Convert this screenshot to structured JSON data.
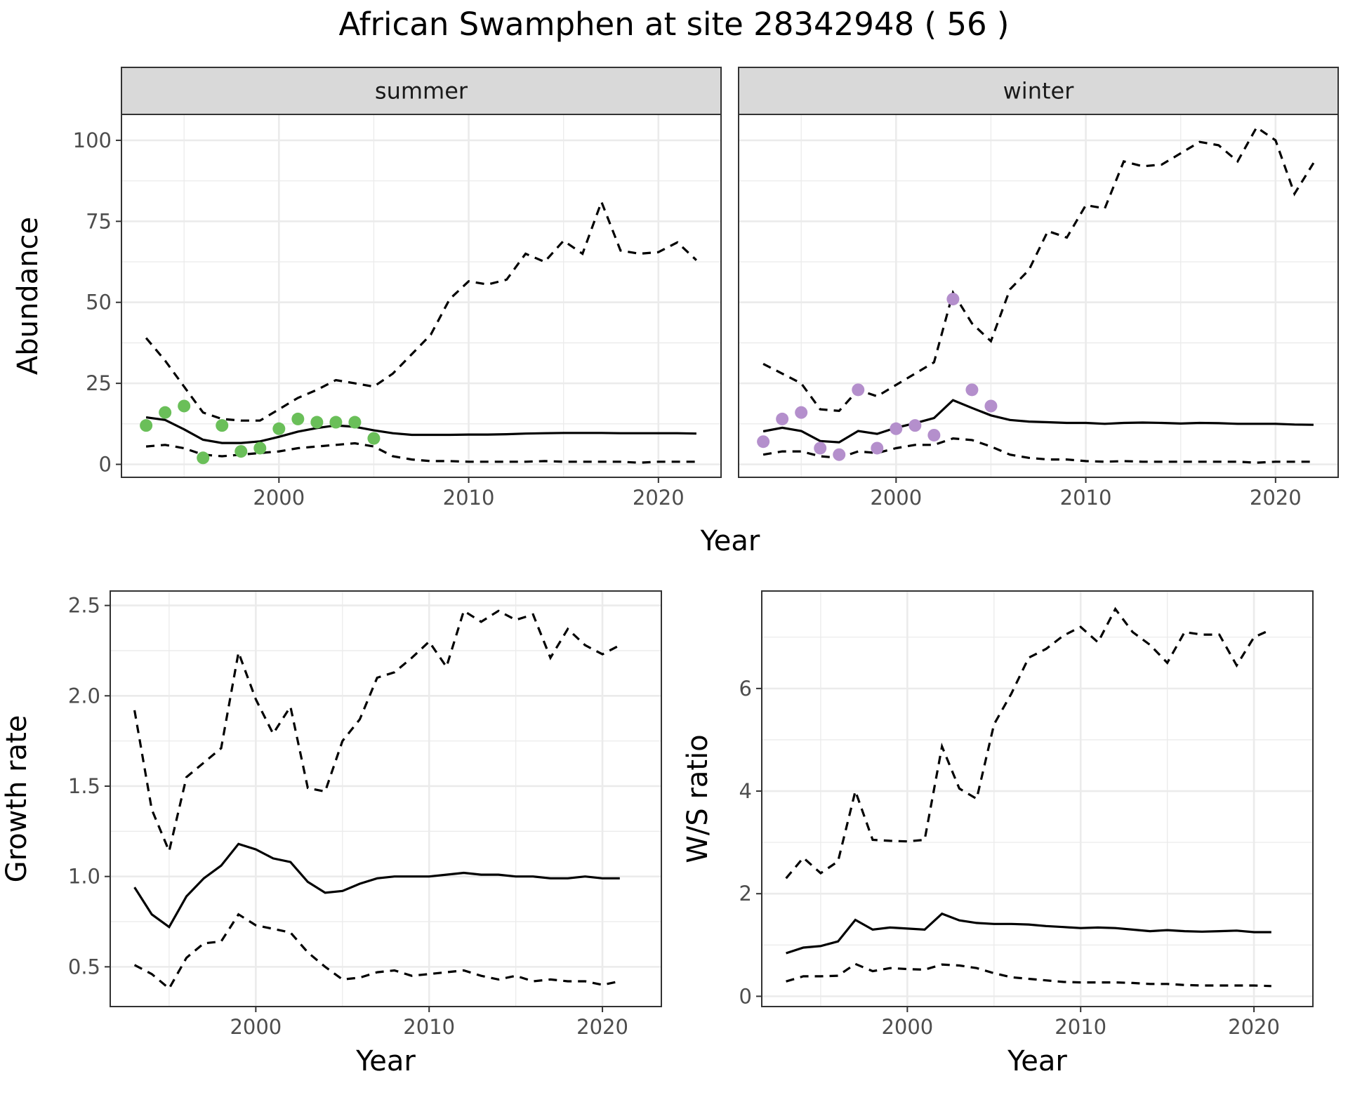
{
  "title": "African Swamphen at site 28342948 ( 56 )",
  "colors": {
    "summer_points": "#6abf59",
    "winter_points": "#b48fcc",
    "strip_fill": "#d9d9d9",
    "lines": "#000000"
  },
  "chart_data": [
    {
      "id": "abundance-summer",
      "type": "line",
      "strip_label": "summer",
      "xlabel": "",
      "ylabel": "Abundance",
      "xlim": [
        1991.7,
        2023.3
      ],
      "ylim": [
        -4,
        108
      ],
      "x_ticks": [
        2000,
        2010,
        2020
      ],
      "y_ticks": [
        0,
        25,
        50,
        75,
        100
      ],
      "grid": true,
      "series": [
        {
          "role": "mean",
          "style": "solid",
          "x": [
            1993,
            1994,
            1995,
            1996,
            1997,
            1998,
            1999,
            2000,
            2001,
            2002,
            2003,
            2004,
            2005,
            2006,
            2007,
            2008,
            2009,
            2010,
            2011,
            2012,
            2013,
            2014,
            2015,
            2016,
            2017,
            2018,
            2019,
            2020,
            2021,
            2022
          ],
          "y": [
            14.5,
            13.7,
            10.8,
            7.6,
            6.6,
            6.6,
            7.1,
            8.5,
            10.1,
            11.2,
            12.0,
            11.6,
            10.5,
            9.6,
            9.1,
            9.1,
            9.1,
            9.2,
            9.2,
            9.3,
            9.5,
            9.6,
            9.7,
            9.7,
            9.7,
            9.6,
            9.6,
            9.6,
            9.6,
            9.5
          ]
        },
        {
          "role": "upper",
          "style": "dashed",
          "x": [
            1993,
            1994,
            1995,
            1996,
            1997,
            1998,
            1999,
            2000,
            2001,
            2002,
            2003,
            2004,
            2005,
            2006,
            2007,
            2008,
            2009,
            2010,
            2011,
            2012,
            2013,
            2014,
            2015,
            2016,
            2017,
            2018,
            2019,
            2020,
            2021,
            2022
          ],
          "y": [
            39,
            32,
            24,
            16,
            14,
            13.5,
            13.5,
            17,
            20.5,
            23,
            26,
            25,
            24,
            28,
            34,
            40,
            51,
            56.5,
            55.5,
            57,
            65,
            62.5,
            69,
            65,
            81,
            66,
            65,
            65.5,
            68.5,
            63
          ]
        },
        {
          "role": "lower",
          "style": "dashed",
          "x": [
            1993,
            1994,
            1995,
            1996,
            1997,
            1998,
            1999,
            2000,
            2001,
            2002,
            2003,
            2004,
            2005,
            2006,
            2007,
            2008,
            2009,
            2010,
            2011,
            2012,
            2013,
            2014,
            2015,
            2016,
            2017,
            2018,
            2019,
            2020,
            2021,
            2022
          ],
          "y": [
            5.5,
            6,
            5,
            3,
            2.5,
            3,
            3.5,
            4,
            5,
            5.5,
            6,
            6.5,
            5.5,
            2.5,
            1.5,
            1,
            1,
            0.8,
            0.8,
            0.8,
            0.8,
            1,
            0.8,
            0.8,
            0.8,
            0.8,
            0.5,
            0.8,
            0.8,
            0.8
          ]
        }
      ],
      "points": {
        "x": [
          1993,
          1994,
          1995,
          1996,
          1997,
          1998,
          1999,
          2000,
          2001,
          2002,
          2003,
          2004,
          2005
        ],
        "y": [
          12,
          16,
          18,
          2,
          12,
          4,
          5,
          11,
          14,
          13,
          13,
          13,
          8
        ]
      }
    },
    {
      "id": "abundance-winter",
      "type": "line",
      "strip_label": "winter",
      "xlabel": "",
      "ylabel": "",
      "xlim": [
        1991.7,
        2023.3
      ],
      "ylim": [
        -4,
        108
      ],
      "x_ticks": [
        2000,
        2010,
        2020
      ],
      "y_ticks": [
        0,
        25,
        50,
        75,
        100
      ],
      "grid": true,
      "series": [
        {
          "role": "mean",
          "style": "solid",
          "x": [
            1993,
            1994,
            1995,
            1996,
            1997,
            1998,
            1999,
            2000,
            2001,
            2002,
            2003,
            2004,
            2005,
            2006,
            2007,
            2008,
            2009,
            2010,
            2011,
            2012,
            2013,
            2014,
            2015,
            2016,
            2017,
            2018,
            2019,
            2020,
            2021,
            2022
          ],
          "y": [
            10.2,
            11.3,
            10.3,
            7.2,
            6.8,
            10.3,
            9.4,
            11.3,
            12.7,
            14.3,
            19.8,
            17.4,
            15.1,
            13.7,
            13.2,
            13,
            12.8,
            12.8,
            12.5,
            12.8,
            12.9,
            12.8,
            12.6,
            12.8,
            12.7,
            12.5,
            12.5,
            12.5,
            12.3,
            12.2
          ]
        },
        {
          "role": "upper",
          "style": "dashed",
          "x": [
            1993,
            1994,
            1995,
            1996,
            1997,
            1998,
            1999,
            2000,
            2001,
            2002,
            2003,
            2004,
            2005,
            2006,
            2007,
            2008,
            2009,
            2010,
            2011,
            2012,
            2013,
            2014,
            2015,
            2016,
            2017,
            2018,
            2019,
            2020,
            2021,
            2022
          ],
          "y": [
            31,
            28,
            25,
            17,
            16.5,
            23,
            21,
            24.5,
            28,
            31.5,
            53,
            43.5,
            38,
            54,
            60,
            72,
            70,
            80,
            79,
            93.5,
            92,
            92.5,
            96,
            99.5,
            98.5,
            93.5,
            104,
            100,
            83.5,
            93
          ]
        },
        {
          "role": "lower",
          "style": "dashed",
          "x": [
            1993,
            1994,
            1995,
            1996,
            1997,
            1998,
            1999,
            2000,
            2001,
            2002,
            2003,
            2004,
            2005,
            2006,
            2007,
            2008,
            2009,
            2010,
            2011,
            2012,
            2013,
            2014,
            2015,
            2016,
            2017,
            2018,
            2019,
            2020,
            2021,
            2022
          ],
          "y": [
            3,
            4,
            4,
            2.5,
            2,
            4,
            3.5,
            5,
            6,
            6,
            8,
            7.5,
            5.5,
            3,
            2,
            1.5,
            1.5,
            1,
            0.8,
            1,
            0.8,
            0.8,
            0.8,
            0.8,
            0.8,
            0.8,
            0.5,
            0.8,
            0.8,
            0.8
          ]
        }
      ],
      "points": {
        "x": [
          1993,
          1994,
          1995,
          1996,
          1997,
          1998,
          1999,
          2000,
          2001,
          2002,
          2003,
          2004,
          2005
        ],
        "y": [
          7,
          14,
          16,
          5,
          3,
          23,
          5,
          11,
          12,
          9,
          51,
          23,
          18
        ]
      }
    },
    {
      "id": "growth-rate",
      "type": "line",
      "xlabel": "Year",
      "ylabel": "Growth rate",
      "xlim": [
        1991.6,
        2023.4
      ],
      "ylim": [
        0.28,
        2.58
      ],
      "x_ticks": [
        2000,
        2010,
        2020
      ],
      "y_ticks": [
        0.5,
        1.0,
        1.5,
        2.0,
        2.5
      ],
      "grid": true,
      "series": [
        {
          "role": "mean",
          "style": "solid",
          "x": [
            1993,
            1994,
            1995,
            1996,
            1997,
            1998,
            1999,
            2000,
            2001,
            2002,
            2003,
            2004,
            2005,
            2006,
            2007,
            2008,
            2009,
            2010,
            2011,
            2012,
            2013,
            2014,
            2015,
            2016,
            2017,
            2018,
            2019,
            2020,
            2021
          ],
          "y": [
            0.94,
            0.79,
            0.72,
            0.89,
            0.99,
            1.06,
            1.18,
            1.15,
            1.1,
            1.08,
            0.97,
            0.91,
            0.92,
            0.96,
            0.99,
            1.0,
            1.0,
            1.0,
            1.01,
            1.02,
            1.01,
            1.01,
            1.0,
            1.0,
            0.99,
            0.99,
            1.0,
            0.99,
            0.99
          ]
        },
        {
          "role": "upper",
          "style": "dashed",
          "x": [
            1993,
            1994,
            1995,
            1996,
            1997,
            1998,
            1999,
            2000,
            2001,
            2002,
            2003,
            2004,
            2005,
            2006,
            2007,
            2008,
            2009,
            2010,
            2011,
            2012,
            2013,
            2014,
            2015,
            2016,
            2017,
            2018,
            2019,
            2020,
            2021
          ],
          "y": [
            1.92,
            1.37,
            1.14,
            1.55,
            1.63,
            1.71,
            2.24,
            1.98,
            1.79,
            1.94,
            1.49,
            1.47,
            1.75,
            1.87,
            2.1,
            2.13,
            2.21,
            2.3,
            2.16,
            2.47,
            2.41,
            2.47,
            2.42,
            2.45,
            2.21,
            2.37,
            2.28,
            2.23,
            2.28
          ]
        },
        {
          "role": "lower",
          "style": "dashed",
          "x": [
            1993,
            1994,
            1995,
            1996,
            1997,
            1998,
            1999,
            2000,
            2001,
            2002,
            2003,
            2004,
            2005,
            2006,
            2007,
            2008,
            2009,
            2010,
            2011,
            2012,
            2013,
            2014,
            2015,
            2016,
            2017,
            2018,
            2019,
            2020,
            2021
          ],
          "y": [
            0.51,
            0.46,
            0.38,
            0.55,
            0.63,
            0.64,
            0.79,
            0.73,
            0.71,
            0.69,
            0.58,
            0.5,
            0.43,
            0.44,
            0.47,
            0.48,
            0.45,
            0.46,
            0.47,
            0.48,
            0.45,
            0.43,
            0.45,
            0.42,
            0.43,
            0.42,
            0.42,
            0.4,
            0.42
          ]
        }
      ]
    },
    {
      "id": "ws-ratio",
      "type": "line",
      "xlabel": "Year",
      "ylabel": "W/S ratio",
      "xlim": [
        1991.6,
        2023.4
      ],
      "ylim": [
        -0.2,
        7.9
      ],
      "x_ticks": [
        2000,
        2010,
        2020
      ],
      "y_ticks": [
        0,
        2,
        4,
        6
      ],
      "grid": true,
      "series": [
        {
          "role": "mean",
          "style": "solid",
          "x": [
            1993,
            1994,
            1995,
            1996,
            1997,
            1998,
            1999,
            2000,
            2001,
            2002,
            2003,
            2004,
            2005,
            2006,
            2007,
            2008,
            2009,
            2010,
            2011,
            2012,
            2013,
            2014,
            2015,
            2016,
            2017,
            2018,
            2019,
            2020,
            2021
          ],
          "y": [
            0.84,
            0.95,
            0.98,
            1.07,
            1.49,
            1.3,
            1.34,
            1.32,
            1.3,
            1.61,
            1.48,
            1.43,
            1.41,
            1.41,
            1.4,
            1.37,
            1.35,
            1.33,
            1.34,
            1.33,
            1.3,
            1.27,
            1.29,
            1.27,
            1.26,
            1.27,
            1.28,
            1.25,
            1.25
          ]
        },
        {
          "role": "upper",
          "style": "dashed",
          "x": [
            1993,
            1994,
            1995,
            1996,
            1997,
            1998,
            1999,
            2000,
            2001,
            2002,
            2003,
            2004,
            2005,
            2006,
            2007,
            2008,
            2009,
            2010,
            2011,
            2012,
            2013,
            2014,
            2015,
            2016,
            2017,
            2018,
            2019,
            2020,
            2021
          ],
          "y": [
            2.3,
            2.7,
            2.4,
            2.63,
            4.0,
            3.05,
            3.03,
            3.02,
            3.05,
            4.87,
            4.05,
            3.85,
            5.3,
            5.9,
            6.6,
            6.77,
            7.03,
            7.2,
            6.9,
            7.55,
            7.1,
            6.85,
            6.5,
            7.1,
            7.05,
            7.05,
            6.45,
            7.0,
            7.15
          ]
        },
        {
          "role": "lower",
          "style": "dashed",
          "x": [
            1993,
            1994,
            1995,
            1996,
            1997,
            1998,
            1999,
            2000,
            2001,
            2002,
            2003,
            2004,
            2005,
            2006,
            2007,
            2008,
            2009,
            2010,
            2011,
            2012,
            2013,
            2014,
            2015,
            2016,
            2017,
            2018,
            2019,
            2020,
            2021
          ],
          "y": [
            0.29,
            0.39,
            0.39,
            0.4,
            0.63,
            0.49,
            0.55,
            0.53,
            0.52,
            0.62,
            0.6,
            0.55,
            0.45,
            0.37,
            0.34,
            0.31,
            0.28,
            0.27,
            0.27,
            0.27,
            0.26,
            0.24,
            0.24,
            0.22,
            0.21,
            0.21,
            0.21,
            0.21,
            0.2
          ]
        }
      ]
    }
  ]
}
